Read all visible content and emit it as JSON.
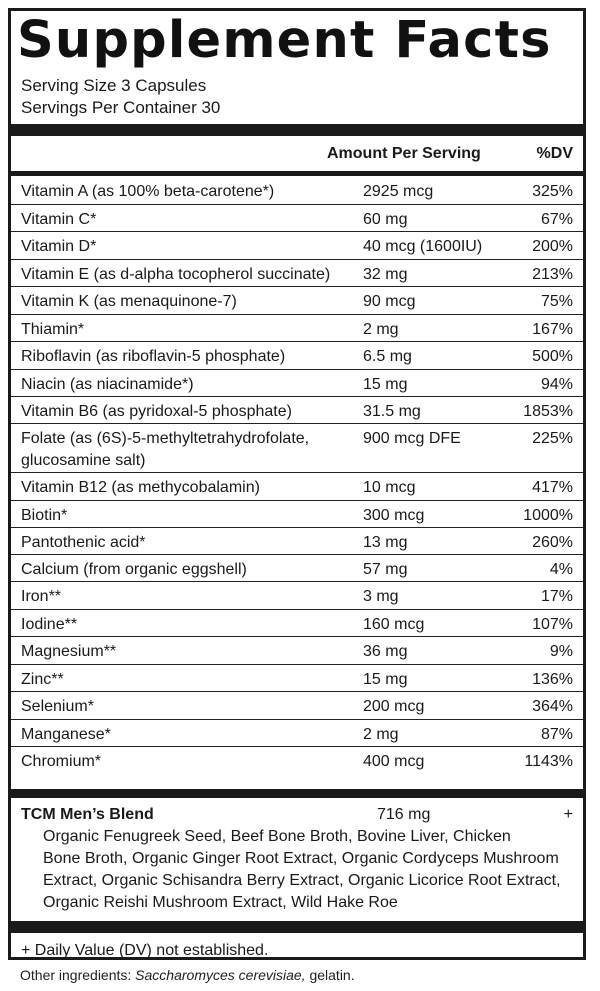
{
  "title": "Supplement Facts",
  "serving_size": "Serving Size 3 Capsules",
  "servings_per_container": "Servings Per Container 30",
  "header": {
    "amount": "Amount Per Serving",
    "dv": "%DV"
  },
  "nutrients": [
    {
      "name": "Vitamin A (as 100% beta-carotene*)",
      "amount": "2925 mcg",
      "dv": "325%"
    },
    {
      "name": "Vitamin C*",
      "amount": "60 mg",
      "dv": "67%"
    },
    {
      "name": "Vitamin D*",
      "amount": "40 mcg (1600IU)",
      "dv": "200%"
    },
    {
      "name": "Vitamin E (as d-alpha tocopherol succinate)",
      "amount": "32 mg",
      "dv": "213%"
    },
    {
      "name": "Vitamin K (as menaquinone-7)",
      "amount": "90 mcg",
      "dv": "75%"
    },
    {
      "name": "Thiamin*",
      "amount": "2 mg",
      "dv": "167%"
    },
    {
      "name": "Riboflavin (as riboflavin-5 phosphate)",
      "amount": "6.5 mg",
      "dv": "500%"
    },
    {
      "name": "Niacin (as niacinamide*)",
      "amount": "15 mg",
      "dv": "94%"
    },
    {
      "name": "Vitamin B6 (as pyridoxal-5 phosphate)",
      "amount": "31.5 mg",
      "dv": "1853%"
    },
    {
      "name": "Folate (as (6S)-5-methyltetrahydrofolate,",
      "name2": "glucosamine salt)",
      "amount": "900 mcg DFE",
      "dv": "225%"
    },
    {
      "name": "Vitamin B12 (as methycobalamin)",
      "amount": "10 mcg",
      "dv": "417%"
    },
    {
      "name": "Biotin*",
      "amount": "300 mcg",
      "dv": "1000%"
    },
    {
      "name": "Pantothenic acid*",
      "amount": "13 mg",
      "dv": "260%"
    },
    {
      "name": "Calcium (from organic eggshell)",
      "amount": "57 mg",
      "dv": "4%"
    },
    {
      "name": "Iron**",
      "amount": "3 mg",
      "dv": "17%"
    },
    {
      "name": "Iodine**",
      "amount": "160 mcg",
      "dv": "107%"
    },
    {
      "name": "Magnesium**",
      "amount": "36 mg",
      "dv": "9%"
    },
    {
      "name": "Zinc**",
      "amount": "15 mg",
      "dv": "136%"
    },
    {
      "name": "Selenium*",
      "amount": "200 mcg",
      "dv": "364%"
    },
    {
      "name": "Manganese*",
      "amount": "2 mg",
      "dv": "87%"
    },
    {
      "name": "Chromium*",
      "amount": "400 mcg",
      "dv": "1143%"
    }
  ],
  "blend": {
    "name": "TCM Men’s Blend",
    "amount": "716 mg",
    "dv": "+",
    "ingredients": [
      "Organic Fenugreek Seed, Beef Bone Broth, Bovine Liver, Chicken",
      "Bone Broth, Organic Ginger Root Extract, Organic Cordyceps Mushroom",
      "Extract, Organic Schisandra Berry Extract, Organic Licorice Root Extract,",
      "Organic Reishi Mushroom Extract, Wild Hake Roe"
    ]
  },
  "footnote": "+ Daily Value (DV) not established.",
  "other_ingredients": {
    "label": "Other ingredients: ",
    "italic": "Saccharomyces cerevisiae,",
    "rest": " gelatin."
  }
}
